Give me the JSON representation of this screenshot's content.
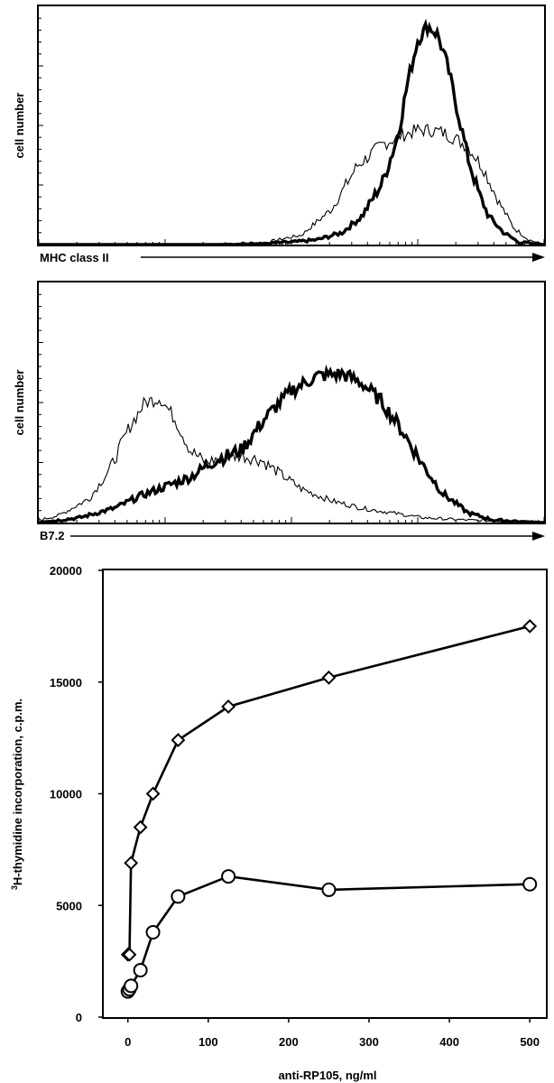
{
  "chart_data": [
    {
      "type": "area",
      "panel": "histogram-mhc",
      "ylabel": "cell number",
      "xlabel": "MHC class II",
      "x_scale": "log",
      "x_decades": 4,
      "grid": false,
      "series": [
        {
          "style": "thin",
          "x": [
            0.0,
            0.3,
            0.45,
            0.52,
            0.58,
            0.63,
            0.68,
            0.72,
            0.75,
            0.78,
            0.8,
            0.82,
            0.85,
            0.88,
            0.91,
            0.94,
            0.97,
            1.0
          ],
          "y": [
            0.0,
            0.0,
            0.01,
            0.04,
            0.15,
            0.33,
            0.42,
            0.46,
            0.48,
            0.48,
            0.47,
            0.45,
            0.41,
            0.32,
            0.18,
            0.07,
            0.02,
            0.0
          ]
        },
        {
          "style": "thick",
          "x": [
            0.0,
            0.4,
            0.5,
            0.55,
            0.6,
            0.64,
            0.68,
            0.71,
            0.73,
            0.75,
            0.77,
            0.79,
            0.81,
            0.83,
            0.85,
            0.87,
            0.89,
            0.92,
            0.95,
            1.0
          ],
          "y": [
            0.0,
            0.0,
            0.01,
            0.02,
            0.05,
            0.12,
            0.26,
            0.45,
            0.68,
            0.86,
            0.92,
            0.88,
            0.74,
            0.55,
            0.36,
            0.22,
            0.12,
            0.05,
            0.01,
            0.0
          ]
        }
      ]
    },
    {
      "type": "area",
      "panel": "histogram-b72",
      "ylabel": "cell number",
      "xlabel": "B7.2",
      "x_scale": "log",
      "x_decades": 4,
      "grid": false,
      "series": [
        {
          "style": "thin",
          "x": [
            0.0,
            0.04,
            0.1,
            0.14,
            0.18,
            0.21,
            0.24,
            0.27,
            0.3,
            0.33,
            0.36,
            0.4,
            0.44,
            0.48,
            0.52,
            0.58,
            0.64,
            0.7,
            0.76,
            0.85,
            1.0
          ],
          "y": [
            0.01,
            0.03,
            0.1,
            0.22,
            0.4,
            0.5,
            0.52,
            0.43,
            0.3,
            0.25,
            0.27,
            0.28,
            0.26,
            0.2,
            0.14,
            0.09,
            0.06,
            0.04,
            0.02,
            0.01,
            0.0
          ]
        },
        {
          "style": "thick",
          "x": [
            0.0,
            0.08,
            0.15,
            0.2,
            0.25,
            0.3,
            0.35,
            0.4,
            0.45,
            0.5,
            0.55,
            0.6,
            0.64,
            0.68,
            0.72,
            0.76,
            0.8,
            0.85,
            0.9,
            1.0
          ],
          "y": [
            0.0,
            0.02,
            0.06,
            0.11,
            0.15,
            0.19,
            0.26,
            0.3,
            0.44,
            0.55,
            0.61,
            0.62,
            0.58,
            0.5,
            0.38,
            0.24,
            0.12,
            0.04,
            0.01,
            0.0
          ]
        }
      ]
    },
    {
      "type": "line",
      "panel": "proliferation",
      "xlabel": "anti-RP105, ng/ml",
      "ylabel_sup": "3",
      "ylabel": "H-thymidine incorporation, c.p.m.",
      "xlim": [
        -30,
        520
      ],
      "ylim": [
        0,
        20000
      ],
      "xticks": [
        0,
        100,
        200,
        300,
        400,
        500
      ],
      "yticks": [
        0,
        5000,
        10000,
        15000,
        20000
      ],
      "grid": false,
      "series": [
        {
          "marker": "diamond",
          "x": [
            0,
            1.95,
            3.9,
            15.6,
            31.25,
            62.5,
            125,
            250,
            500
          ],
          "y": [
            2800,
            2800,
            6900,
            8500,
            10000,
            12400,
            13900,
            15200,
            17500
          ]
        },
        {
          "marker": "circle",
          "x": [
            0,
            1.95,
            3.9,
            15.6,
            31.25,
            62.5,
            125,
            250,
            500
          ],
          "y": [
            1150,
            1250,
            1400,
            2100,
            3800,
            5400,
            6300,
            5700,
            5950
          ]
        }
      ]
    }
  ]
}
